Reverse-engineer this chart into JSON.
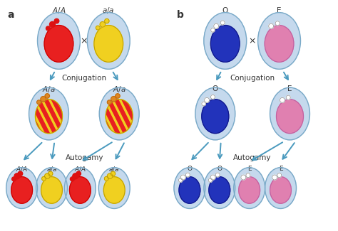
{
  "bg_color": "#ffffff",
  "cell_outer_color": "#c5d9ed",
  "cell_outer_edge": "#7aaac8",
  "cell_inner_color_light": "#d8e8f5",
  "red_color": "#e82020",
  "red_nucleus_edge": "#cc0000",
  "yellow_color": "#f0d020",
  "yellow_nucleus_edge": "#c0a000",
  "blue_color": "#2233bb",
  "blue_nucleus_edge": "#111888",
  "pink_color": "#e080b0",
  "pink_nucleus_edge": "#c060a0",
  "white_dot_color": "#ffffff",
  "white_dot_edge": "#999999",
  "red_dot_color": "#dd1111",
  "yellow_dot_color": "#f0d020",
  "yellow_dot_edge": "#b09000",
  "orange_dot_color": "#e08820",
  "orange_dot_edge": "#b06010",
  "arrow_color": "#4a9abe",
  "text_color": "#333333",
  "stripe_red": "#e82020",
  "stripe_yellow": "#f0d020",
  "label_a": "a",
  "label_b": "b",
  "conjugation_text": "Conjugation",
  "autogamy_text": "Autogamy"
}
